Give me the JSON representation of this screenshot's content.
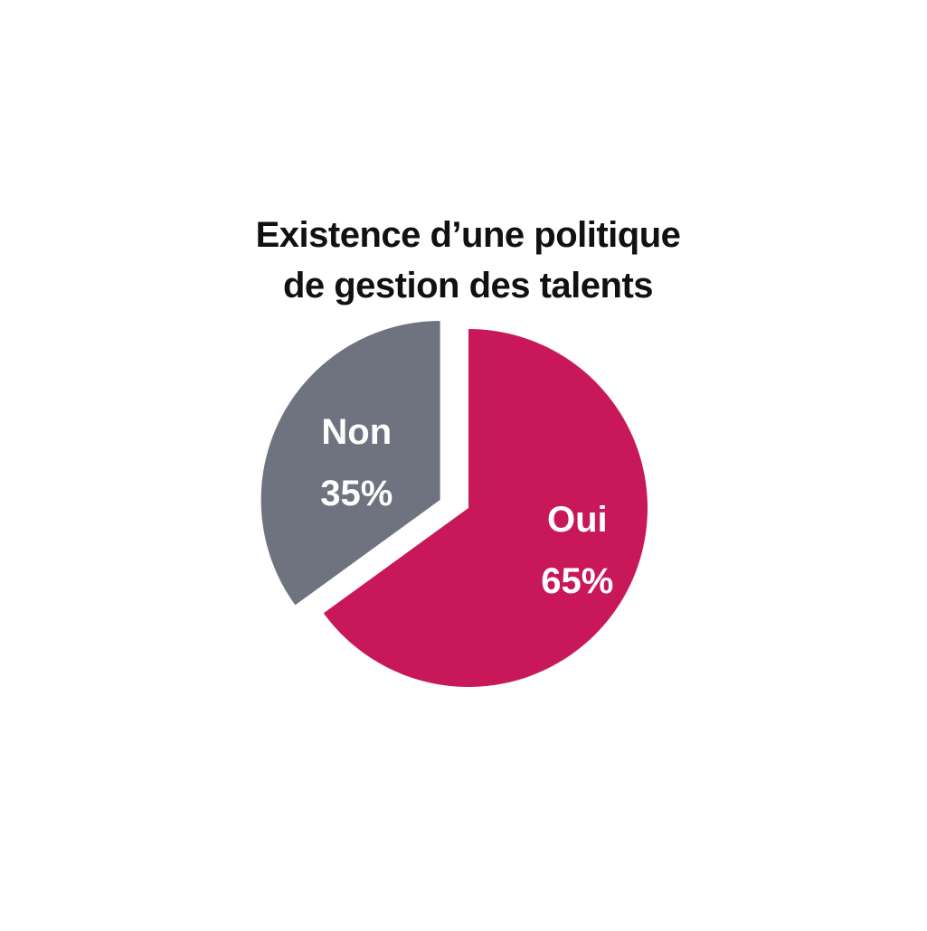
{
  "chart_data": {
    "type": "pie",
    "title_lines": [
      "Existence d’une politique",
      "de gestion des talents"
    ],
    "slices": [
      {
        "label": "Oui",
        "value": 65,
        "value_label": "65%",
        "color": "#c8185a"
      },
      {
        "label": "Non",
        "value": 35,
        "value_label": "35%",
        "color": "#6f7380"
      }
    ],
    "legend": "none"
  }
}
